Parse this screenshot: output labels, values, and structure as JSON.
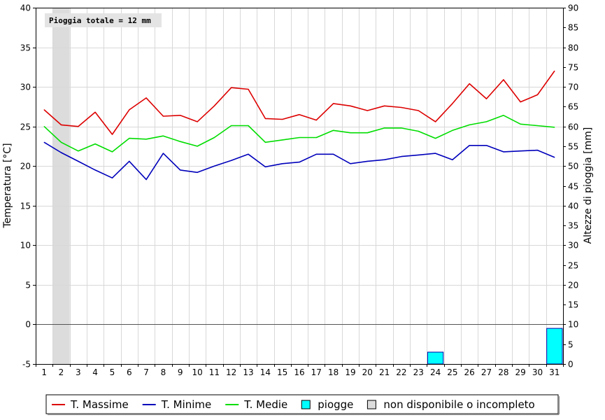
{
  "chart_data": {
    "type": "line",
    "annotation": "Pioggia totale = 12 mm",
    "ylabel": "Temperatura [°C]",
    "y2label": "Altezze di pioggia [mm]",
    "ylim": [
      -5,
      40
    ],
    "y2lim": [
      0,
      90
    ],
    "yticks": [
      "40",
      "35",
      "30",
      "25",
      "20",
      "15",
      "10",
      "5",
      "0",
      "-5"
    ],
    "y2ticks": [
      "90",
      "85",
      "80",
      "75",
      "70",
      "65",
      "60",
      "55",
      "50",
      "45",
      "40",
      "35",
      "30",
      "25",
      "20",
      "15",
      "10",
      "5",
      "0"
    ],
    "categories": [
      "1",
      "2",
      "3",
      "4",
      "5",
      "6",
      "7",
      "8",
      "9",
      "10",
      "11",
      "12",
      "13",
      "14",
      "15",
      "16",
      "17",
      "18",
      "19",
      "20",
      "21",
      "22",
      "23",
      "24",
      "25",
      "26",
      "27",
      "28",
      "29",
      "30",
      "31"
    ],
    "series": [
      {
        "name": "T. Massime",
        "color": "#dd0000",
        "values": [
          27.1,
          25.2,
          25.0,
          26.8,
          24.0,
          27.1,
          28.6,
          26.3,
          26.4,
          25.6,
          27.6,
          29.9,
          29.7,
          26.0,
          25.9,
          26.5,
          25.8,
          27.9,
          27.6,
          27.0,
          27.6,
          27.4,
          27.0,
          25.6,
          27.9,
          30.4,
          28.5,
          30.9,
          28.1,
          29.0,
          32.0
        ]
      },
      {
        "name": "T. Minime",
        "color": "#0000bb",
        "values": [
          23.0,
          21.7,
          20.6,
          19.5,
          18.5,
          20.6,
          18.3,
          21.6,
          19.5,
          19.2,
          20.0,
          20.7,
          21.5,
          19.9,
          20.3,
          20.5,
          21.5,
          21.5,
          20.3,
          20.6,
          20.8,
          21.2,
          21.4,
          21.6,
          20.8,
          22.6,
          22.6,
          21.8,
          21.9,
          22.0,
          21.1
        ]
      },
      {
        "name": "T. Medie",
        "color": "#00dd00",
        "values": [
          25.0,
          23.0,
          21.9,
          22.8,
          21.8,
          23.5,
          23.4,
          23.8,
          23.1,
          22.5,
          23.6,
          25.1,
          25.1,
          23.0,
          23.3,
          23.6,
          23.6,
          24.5,
          24.2,
          24.2,
          24.8,
          24.8,
          24.4,
          23.5,
          24.5,
          25.2,
          25.6,
          26.4,
          25.3,
          25.1,
          24.9
        ]
      }
    ],
    "bars": {
      "name": "piogge",
      "color": "#00ffff",
      "categories": [
        "24",
        "31"
      ],
      "values": [
        3,
        9
      ]
    },
    "unavailable": {
      "name": "non disponibile o incompleto",
      "color": "#dcdcdc",
      "categories": [
        "2"
      ]
    },
    "grid": true
  }
}
